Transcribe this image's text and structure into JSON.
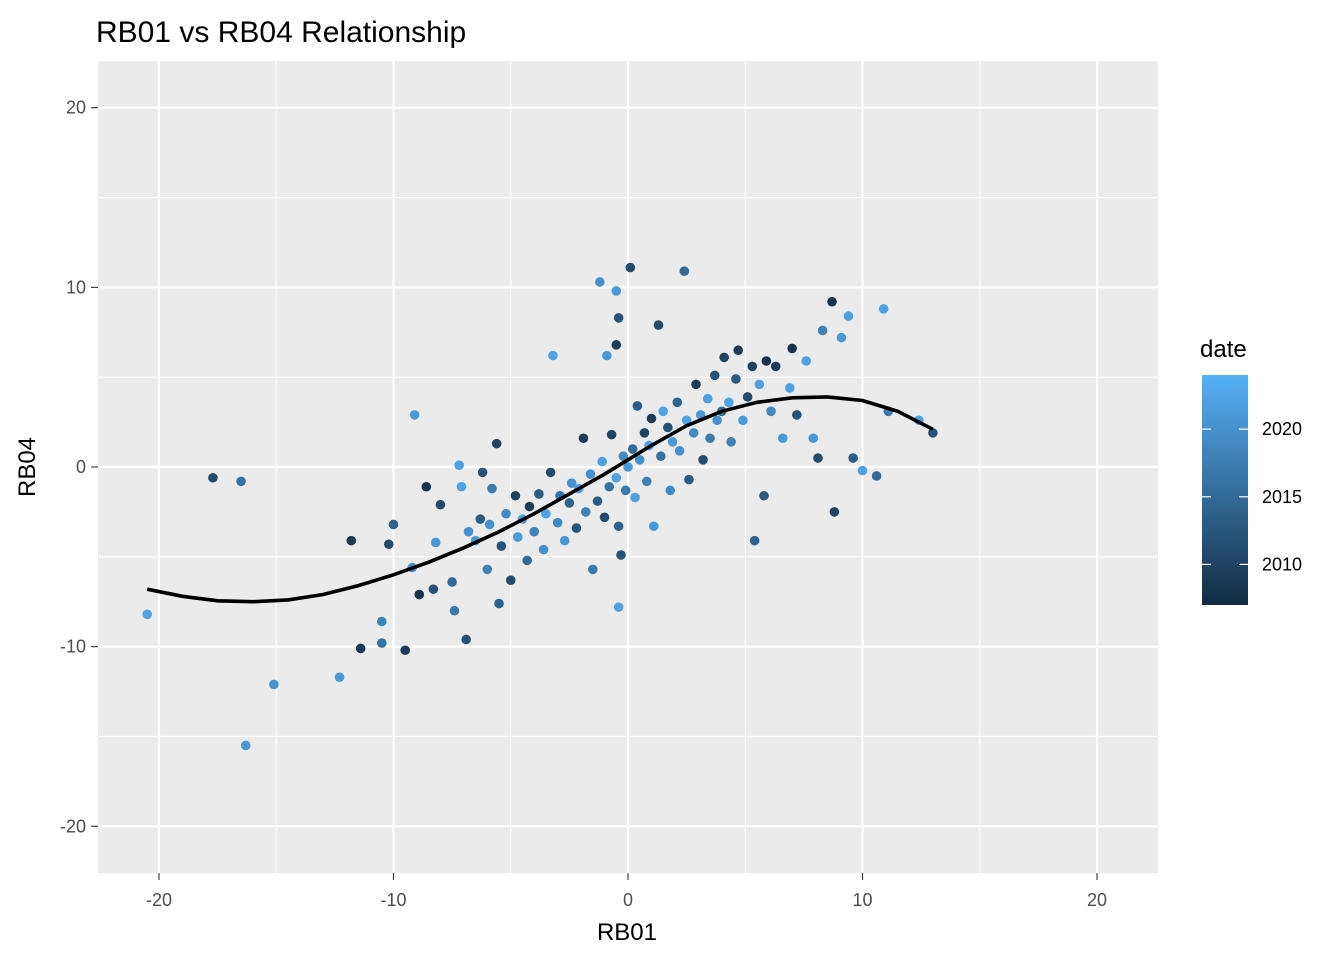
{
  "chart_data": {
    "type": "scatter",
    "title": "RB01 vs RB04 Relationship",
    "xlabel": "RB01",
    "ylabel": "RB04",
    "xlim": [
      -22.6,
      22.6
    ],
    "ylim": [
      -22.6,
      22.6
    ],
    "x_ticks": [
      -20,
      -10,
      0,
      10,
      20
    ],
    "y_ticks": [
      -20,
      -10,
      0,
      10,
      20
    ],
    "x_tick_labels": [
      "-20",
      "-10",
      "0",
      "10",
      "20"
    ],
    "y_tick_labels": [
      "-20",
      "-10",
      "0",
      "10",
      "20"
    ],
    "grid": true,
    "legend": {
      "title": "date",
      "position": "right",
      "type": "colorbar",
      "range": [
        2007,
        2024
      ],
      "ticks": [
        2010,
        2015,
        2020
      ],
      "tick_labels": [
        "2010",
        "2015",
        "2020"
      ],
      "color_low": "#132B43",
      "color_high": "#56B1F7"
    },
    "colors": {
      "panel_background": "#EBEBEB",
      "grid_major": "#FFFFFF",
      "smooth_line": "#000000"
    },
    "points": [
      {
        "x": -20.5,
        "y": -8.2,
        "date": 2022
      },
      {
        "x": -17.7,
        "y": -0.6,
        "date": 2011
      },
      {
        "x": -16.5,
        "y": -0.8,
        "date": 2016
      },
      {
        "x": -16.3,
        "y": -15.5,
        "date": 2021
      },
      {
        "x": -15.1,
        "y": -12.1,
        "date": 2020
      },
      {
        "x": -12.3,
        "y": -11.7,
        "date": 2021
      },
      {
        "x": -11.8,
        "y": -4.1,
        "date": 2009
      },
      {
        "x": -11.4,
        "y": -10.1,
        "date": 2009
      },
      {
        "x": -10.5,
        "y": -8.6,
        "date": 2018
      },
      {
        "x": -10.5,
        "y": -9.8,
        "date": 2016
      },
      {
        "x": -10.2,
        "y": -4.3,
        "date": 2011
      },
      {
        "x": -10.0,
        "y": -3.2,
        "date": 2014
      },
      {
        "x": -9.5,
        "y": -10.2,
        "date": 2009
      },
      {
        "x": -9.2,
        "y": -5.6,
        "date": 2020
      },
      {
        "x": -9.1,
        "y": 2.9,
        "date": 2021
      },
      {
        "x": -8.9,
        "y": -7.1,
        "date": 2008
      },
      {
        "x": -8.6,
        "y": -1.1,
        "date": 2008
      },
      {
        "x": -8.3,
        "y": -6.8,
        "date": 2012
      },
      {
        "x": -8.2,
        "y": -4.2,
        "date": 2021
      },
      {
        "x": -8.0,
        "y": -2.1,
        "date": 2011
      },
      {
        "x": -7.5,
        "y": -6.4,
        "date": 2015
      },
      {
        "x": -7.4,
        "y": -8.0,
        "date": 2017
      },
      {
        "x": -7.2,
        "y": 0.1,
        "date": 2022
      },
      {
        "x": -7.1,
        "y": -1.1,
        "date": 2022
      },
      {
        "x": -6.9,
        "y": -9.6,
        "date": 2012
      },
      {
        "x": -6.8,
        "y": -3.6,
        "date": 2020
      },
      {
        "x": -6.5,
        "y": -4.1,
        "date": 2021
      },
      {
        "x": -6.3,
        "y": -2.9,
        "date": 2013
      },
      {
        "x": -6.2,
        "y": -0.3,
        "date": 2012
      },
      {
        "x": -6.0,
        "y": -5.7,
        "date": 2018
      },
      {
        "x": -5.9,
        "y": -3.2,
        "date": 2020
      },
      {
        "x": -5.8,
        "y": -1.2,
        "date": 2017
      },
      {
        "x": -5.6,
        "y": 1.3,
        "date": 2010
      },
      {
        "x": -5.5,
        "y": -7.6,
        "date": 2014
      },
      {
        "x": -5.4,
        "y": -4.4,
        "date": 2012
      },
      {
        "x": -5.2,
        "y": -2.6,
        "date": 2019
      },
      {
        "x": -5.0,
        "y": -6.3,
        "date": 2011
      },
      {
        "x": -4.8,
        "y": -1.6,
        "date": 2010
      },
      {
        "x": -4.7,
        "y": -3.9,
        "date": 2021
      },
      {
        "x": -4.5,
        "y": -2.9,
        "date": 2022
      },
      {
        "x": -4.3,
        "y": -5.2,
        "date": 2015
      },
      {
        "x": -4.2,
        "y": -2.2,
        "date": 2009
      },
      {
        "x": -4.0,
        "y": -3.6,
        "date": 2018
      },
      {
        "x": -3.8,
        "y": -1.5,
        "date": 2013
      },
      {
        "x": -3.6,
        "y": -4.6,
        "date": 2020
      },
      {
        "x": -3.5,
        "y": -2.6,
        "date": 2022
      },
      {
        "x": -3.3,
        "y": -0.3,
        "date": 2011
      },
      {
        "x": -3.2,
        "y": 6.2,
        "date": 2022
      },
      {
        "x": -3.0,
        "y": -3.1,
        "date": 2019
      },
      {
        "x": -2.9,
        "y": -1.6,
        "date": 2016
      },
      {
        "x": -2.7,
        "y": -4.1,
        "date": 2021
      },
      {
        "x": -2.5,
        "y": -2.0,
        "date": 2014
      },
      {
        "x": -2.4,
        "y": -0.9,
        "date": 2020
      },
      {
        "x": -2.2,
        "y": -3.4,
        "date": 2012
      },
      {
        "x": -2.1,
        "y": -1.2,
        "date": 2022
      },
      {
        "x": -1.9,
        "y": 1.6,
        "date": 2009
      },
      {
        "x": -1.8,
        "y": -2.5,
        "date": 2018
      },
      {
        "x": -1.6,
        "y": -0.4,
        "date": 2020
      },
      {
        "x": -1.5,
        "y": -5.7,
        "date": 2017
      },
      {
        "x": -1.3,
        "y": -1.9,
        "date": 2013
      },
      {
        "x": -1.2,
        "y": 10.3,
        "date": 2020
      },
      {
        "x": -1.1,
        "y": 0.3,
        "date": 2022
      },
      {
        "x": -1.0,
        "y": -2.8,
        "date": 2011
      },
      {
        "x": -0.9,
        "y": 6.2,
        "date": 2021
      },
      {
        "x": -0.8,
        "y": -1.1,
        "date": 2016
      },
      {
        "x": -0.7,
        "y": 1.8,
        "date": 2010
      },
      {
        "x": -0.5,
        "y": -0.6,
        "date": 2022
      },
      {
        "x": -0.4,
        "y": -3.3,
        "date": 2014
      },
      {
        "x": -0.5,
        "y": 9.8,
        "date": 2021
      },
      {
        "x": -0.4,
        "y": 8.3,
        "date": 2012
      },
      {
        "x": -0.5,
        "y": 6.8,
        "date": 2009
      },
      {
        "x": -0.4,
        "y": -7.8,
        "date": 2022
      },
      {
        "x": -0.3,
        "y": -4.9,
        "date": 2012
      },
      {
        "x": -0.2,
        "y": 0.6,
        "date": 2019
      },
      {
        "x": -0.1,
        "y": -1.3,
        "date": 2017
      },
      {
        "x": 0.0,
        "y": 0.0,
        "date": 2021
      },
      {
        "x": 0.1,
        "y": 11.1,
        "date": 2011
      },
      {
        "x": 0.2,
        "y": 1.0,
        "date": 2015
      },
      {
        "x": 0.3,
        "y": -1.7,
        "date": 2022
      },
      {
        "x": 0.4,
        "y": 3.4,
        "date": 2013
      },
      {
        "x": 0.5,
        "y": 0.4,
        "date": 2020
      },
      {
        "x": 0.7,
        "y": 1.9,
        "date": 2010
      },
      {
        "x": 0.8,
        "y": -0.8,
        "date": 2018
      },
      {
        "x": 0.9,
        "y": 1.2,
        "date": 2022
      },
      {
        "x": 1.0,
        "y": 2.7,
        "date": 2009
      },
      {
        "x": 1.1,
        "y": -3.3,
        "date": 2021
      },
      {
        "x": 1.3,
        "y": 7.9,
        "date": 2011
      },
      {
        "x": 1.4,
        "y": 0.6,
        "date": 2016
      },
      {
        "x": 1.5,
        "y": 3.1,
        "date": 2022
      },
      {
        "x": 1.7,
        "y": 2.2,
        "date": 2012
      },
      {
        "x": 1.8,
        "y": -1.3,
        "date": 2019
      },
      {
        "x": 1.9,
        "y": 1.4,
        "date": 2021
      },
      {
        "x": 2.1,
        "y": 3.6,
        "date": 2014
      },
      {
        "x": 2.2,
        "y": 0.9,
        "date": 2020
      },
      {
        "x": 2.4,
        "y": 10.9,
        "date": 2015
      },
      {
        "x": 2.5,
        "y": 2.6,
        "date": 2022
      },
      {
        "x": 2.6,
        "y": -0.7,
        "date": 2013
      },
      {
        "x": 2.8,
        "y": 1.9,
        "date": 2019
      },
      {
        "x": 2.9,
        "y": 4.6,
        "date": 2009
      },
      {
        "x": 3.1,
        "y": 2.9,
        "date": 2021
      },
      {
        "x": 3.2,
        "y": 0.4,
        "date": 2011
      },
      {
        "x": 3.4,
        "y": 3.8,
        "date": 2022
      },
      {
        "x": 3.5,
        "y": 1.6,
        "date": 2017
      },
      {
        "x": 3.7,
        "y": 5.1,
        "date": 2012
      },
      {
        "x": 3.8,
        "y": 2.6,
        "date": 2020
      },
      {
        "x": 4.0,
        "y": 3.1,
        "date": 2015
      },
      {
        "x": 4.1,
        "y": 6.1,
        "date": 2010
      },
      {
        "x": 4.3,
        "y": 3.6,
        "date": 2022
      },
      {
        "x": 4.4,
        "y": 1.4,
        "date": 2018
      },
      {
        "x": 4.6,
        "y": 4.9,
        "date": 2013
      },
      {
        "x": 4.7,
        "y": 6.5,
        "date": 2009
      },
      {
        "x": 4.9,
        "y": 2.6,
        "date": 2021
      },
      {
        "x": 5.1,
        "y": 3.9,
        "date": 2011
      },
      {
        "x": 5.3,
        "y": 5.6,
        "date": 2010
      },
      {
        "x": 5.4,
        "y": -4.1,
        "date": 2014
      },
      {
        "x": 5.6,
        "y": 4.6,
        "date": 2022
      },
      {
        "x": 5.8,
        "y": -1.6,
        "date": 2013
      },
      {
        "x": 5.9,
        "y": 5.9,
        "date": 2008
      },
      {
        "x": 6.1,
        "y": 3.1,
        "date": 2019
      },
      {
        "x": 6.3,
        "y": 5.6,
        "date": 2009
      },
      {
        "x": 6.6,
        "y": 1.6,
        "date": 2021
      },
      {
        "x": 6.9,
        "y": 4.4,
        "date": 2022
      },
      {
        "x": 7.0,
        "y": 6.6,
        "date": 2008
      },
      {
        "x": 7.2,
        "y": 2.9,
        "date": 2012
      },
      {
        "x": 7.6,
        "y": 5.9,
        "date": 2022
      },
      {
        "x": 7.9,
        "y": 1.6,
        "date": 2021
      },
      {
        "x": 8.1,
        "y": 0.5,
        "date": 2011
      },
      {
        "x": 8.3,
        "y": 7.6,
        "date": 2018
      },
      {
        "x": 8.7,
        "y": 9.2,
        "date": 2008
      },
      {
        "x": 8.8,
        "y": -2.5,
        "date": 2010
      },
      {
        "x": 9.1,
        "y": 7.2,
        "date": 2021
      },
      {
        "x": 9.4,
        "y": 8.4,
        "date": 2022
      },
      {
        "x": 9.6,
        "y": 0.5,
        "date": 2013
      },
      {
        "x": 10.0,
        "y": -0.2,
        "date": 2022
      },
      {
        "x": 10.6,
        "y": -0.5,
        "date": 2015
      },
      {
        "x": 10.9,
        "y": 8.8,
        "date": 2022
      },
      {
        "x": 11.1,
        "y": 3.1,
        "date": 2017
      },
      {
        "x": 12.4,
        "y": 2.6,
        "date": 2022
      },
      {
        "x": 13.0,
        "y": 1.9,
        "date": 2012
      }
    ],
    "smooth_line": {
      "x": [
        -20.5,
        -19,
        -17.5,
        -16,
        -14.5,
        -13,
        -11.5,
        -10,
        -8.5,
        -7,
        -5.5,
        -4,
        -2.5,
        -1,
        0,
        1,
        2.5,
        4,
        5.5,
        7,
        8.5,
        10,
        11.5,
        13
      ],
      "y": [
        -6.8,
        -7.2,
        -7.45,
        -7.5,
        -7.4,
        -7.1,
        -6.6,
        -6.0,
        -5.3,
        -4.5,
        -3.6,
        -2.6,
        -1.5,
        -0.4,
        0.4,
        1.2,
        2.3,
        3.1,
        3.6,
        3.85,
        3.9,
        3.7,
        3.1,
        2.1
      ]
    }
  }
}
